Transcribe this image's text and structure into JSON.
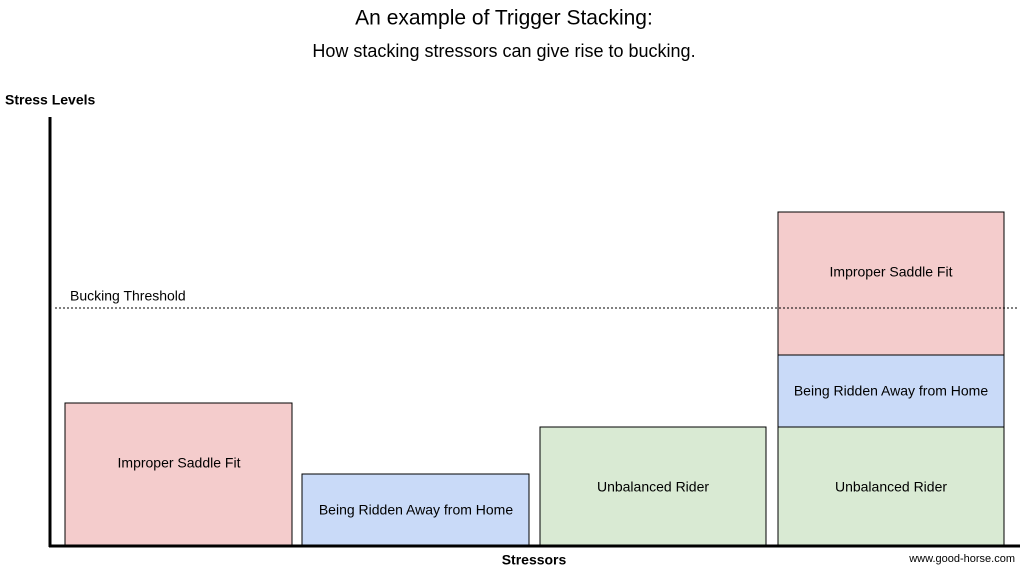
{
  "header": {
    "title": "An example of Trigger Stacking:",
    "subtitle": "How stacking stressors can give rise to bucking."
  },
  "axes": {
    "y_label": "Stress Levels",
    "x_label": "Stressors"
  },
  "threshold": {
    "label": "Bucking Threshold"
  },
  "single_stressors": [
    "Improper Saddle Fit",
    "Being Ridden Away from Home",
    "Unbalanced Rider"
  ],
  "stacked_stressors": [
    "Unbalanced Rider",
    "Being Ridden Away from Home",
    "Improper Saddle Fit"
  ],
  "footer": {
    "source": "www.good-horse.com"
  }
}
